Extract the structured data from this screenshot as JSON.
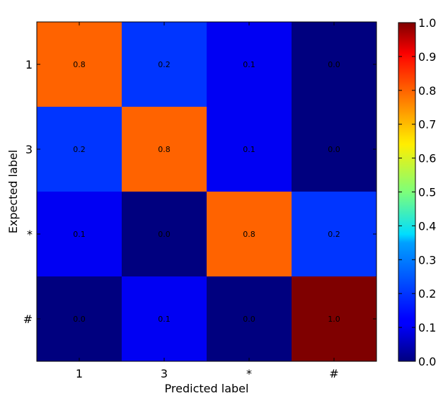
{
  "chart_data": {
    "type": "heatmap",
    "x_categories": [
      "1",
      "3",
      "*",
      "#"
    ],
    "y_categories": [
      "1",
      "3",
      "*",
      "#"
    ],
    "values": [
      [
        0.8,
        0.2,
        0.1,
        0.0
      ],
      [
        0.2,
        0.8,
        0.1,
        0.0
      ],
      [
        0.1,
        0.0,
        0.8,
        0.2
      ],
      [
        0.0,
        0.1,
        0.0,
        1.0
      ]
    ],
    "cell_labels": [
      [
        "0.8",
        "0.2",
        "0.1",
        "0.0"
      ],
      [
        "0.2",
        "0.8",
        "0.1",
        "0.0"
      ],
      [
        "0.1",
        "0.0",
        "0.8",
        "0.2"
      ],
      [
        "0.0",
        "0.1",
        "0.0",
        "1.0"
      ]
    ],
    "xlabel": "Predicted label",
    "ylabel": "Expected label",
    "colormap": "jet",
    "colorbar_range": [
      0.0,
      1.0
    ],
    "colorbar_ticks": [
      "0.0",
      "0.1",
      "0.2",
      "0.3",
      "0.4",
      "0.5",
      "0.6",
      "0.7",
      "0.8",
      "0.9",
      "1.0"
    ]
  }
}
